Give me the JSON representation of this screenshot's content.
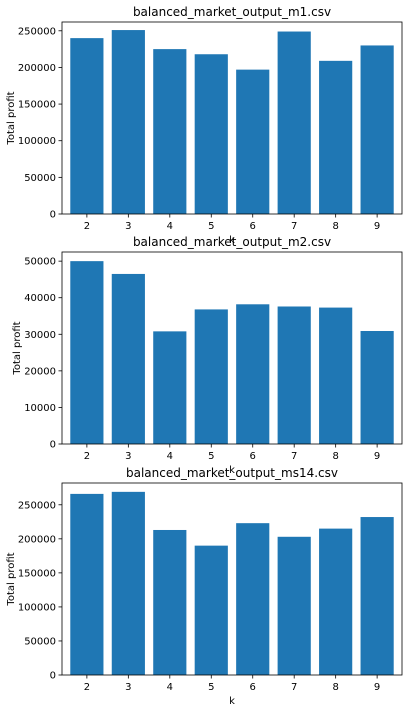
{
  "chart_data": [
    {
      "type": "bar",
      "title": "balanced_market_output_m1.csv",
      "xlabel": "k",
      "ylabel": "Total profit",
      "categories": [
        "2",
        "3",
        "4",
        "5",
        "6",
        "7",
        "8",
        "9"
      ],
      "values": [
        240000,
        251000,
        225000,
        218000,
        197000,
        249000,
        209000,
        230000
      ],
      "ylim": [
        0,
        262000
      ],
      "yticks": [
        0,
        50000,
        100000,
        150000,
        200000,
        250000
      ],
      "bar_color": "#1f77b4",
      "grid": false
    },
    {
      "type": "bar",
      "title": "balanced_market_output_m2.csv",
      "xlabel": "k",
      "ylabel": "Total profit",
      "categories": [
        "2",
        "3",
        "4",
        "5",
        "6",
        "7",
        "8",
        "9"
      ],
      "values": [
        50000,
        46500,
        30800,
        36800,
        38200,
        37600,
        37300,
        30900
      ],
      "ylim": [
        0,
        52500
      ],
      "yticks": [
        0,
        10000,
        20000,
        30000,
        40000,
        50000
      ],
      "bar_color": "#1f77b4",
      "grid": false
    },
    {
      "type": "bar",
      "title": "balanced_market_output_ms14.csv",
      "xlabel": "k",
      "ylabel": "Total profit",
      "categories": [
        "2",
        "3",
        "4",
        "5",
        "6",
        "7",
        "8",
        "9"
      ],
      "values": [
        266000,
        269000,
        213000,
        190000,
        223000,
        203000,
        215000,
        232000
      ],
      "ylim": [
        0,
        282000
      ],
      "yticks": [
        0,
        50000,
        100000,
        150000,
        200000,
        250000
      ],
      "bar_color": "#1f77b4",
      "grid": false
    }
  ]
}
